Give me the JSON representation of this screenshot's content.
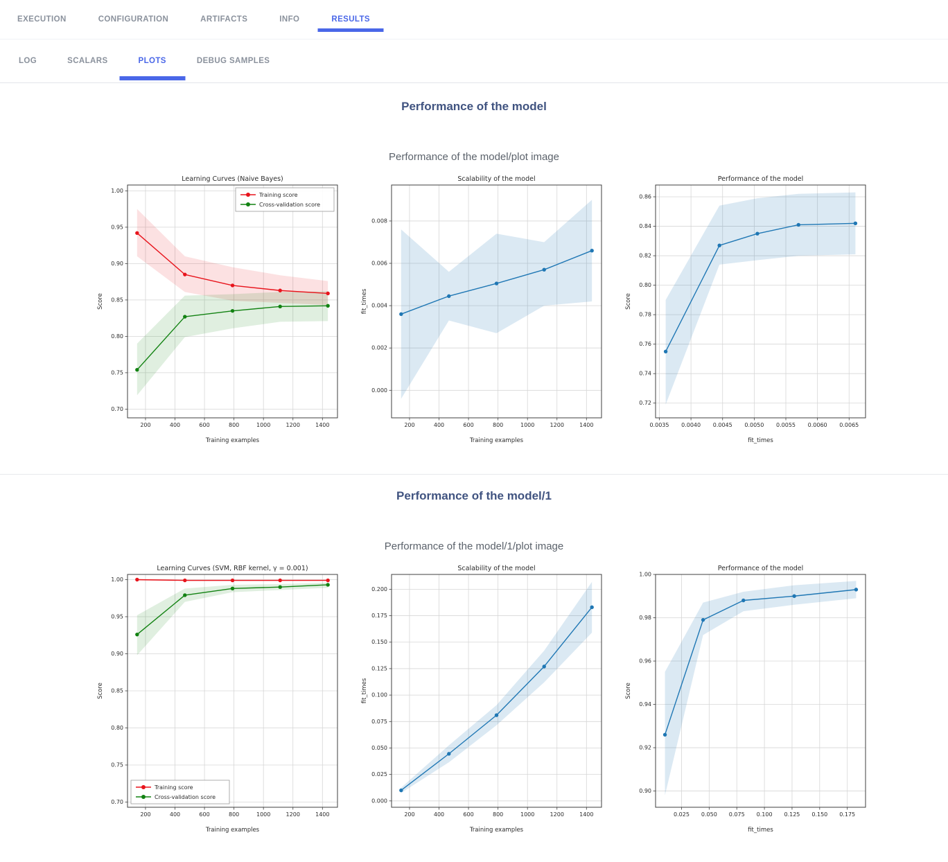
{
  "accent_color": "#4a67e8",
  "section_title_color": "#405380",
  "nav": {
    "tabs": [
      {
        "label": "EXECUTION",
        "active": false
      },
      {
        "label": "CONFIGURATION",
        "active": false
      },
      {
        "label": "ARTIFACTS",
        "active": false
      },
      {
        "label": "INFO",
        "active": false
      },
      {
        "label": "RESULTS",
        "active": true
      }
    ],
    "subtabs": [
      {
        "label": "LOG",
        "active": false
      },
      {
        "label": "SCALARS",
        "active": false
      },
      {
        "label": "PLOTS",
        "active": true
      },
      {
        "label": "DEBUG SAMPLES",
        "active": false
      }
    ]
  },
  "sections": [
    {
      "title": "Performance of the model",
      "subtitle": "Performance of the model/plot image"
    },
    {
      "title": "Performance of the model/1",
      "subtitle": "Performance of the model/1/plot image"
    }
  ],
  "chart_data": [
    {
      "type": "line",
      "title": "Learning Curves (Naive Bayes)",
      "xlabel": "Training examples",
      "ylabel": "Score",
      "xlim": [
        78,
        1502
      ],
      "ylim": [
        0.688,
        1.008
      ],
      "grid": true,
      "legend_position": "top-right",
      "xticks": {
        "values": [
          200,
          400,
          600,
          800,
          1000,
          1200,
          1400
        ],
        "labels": [
          "200",
          "400",
          "600",
          "800",
          "1000",
          "1200",
          "1400"
        ]
      },
      "yticks": {
        "values": [
          0.7,
          0.75,
          0.8,
          0.85,
          0.9,
          0.95,
          1.0
        ],
        "labels": [
          "0.70",
          "0.75",
          "0.80",
          "0.85",
          "0.90",
          "0.95",
          "1.00"
        ]
      },
      "series": [
        {
          "name": "Training score",
          "color": "#e8141c",
          "band_opacity": 0.13,
          "x": [
            143,
            467,
            790,
            1113,
            1437
          ],
          "y": [
            0.942,
            0.885,
            0.87,
            0.863,
            0.859
          ],
          "band_lower": [
            0.91,
            0.861,
            0.849,
            0.846,
            0.843
          ],
          "band_upper": [
            0.975,
            0.91,
            0.895,
            0.884,
            0.876
          ]
        },
        {
          "name": "Cross-validation score",
          "color": "#128212",
          "band_opacity": 0.13,
          "x": [
            143,
            467,
            790,
            1113,
            1437
          ],
          "y": [
            0.754,
            0.827,
            0.835,
            0.841,
            0.842
          ],
          "band_lower": [
            0.719,
            0.799,
            0.811,
            0.82,
            0.821
          ],
          "band_upper": [
            0.79,
            0.856,
            0.858,
            0.861,
            0.862
          ]
        }
      ]
    },
    {
      "type": "line",
      "title": "Scalability of the model",
      "xlabel": "Training examples",
      "ylabel": "fit_times",
      "xlim": [
        78,
        1502
      ],
      "ylim": [
        -0.0013,
        0.0097
      ],
      "grid": true,
      "xticks": {
        "values": [
          200,
          400,
          600,
          800,
          1000,
          1200,
          1400
        ],
        "labels": [
          "200",
          "400",
          "600",
          "800",
          "1000",
          "1200",
          "1400"
        ]
      },
      "yticks": {
        "values": [
          0.0,
          0.002,
          0.004,
          0.006,
          0.008
        ],
        "labels": [
          "0.000",
          "0.002",
          "0.004",
          "0.006",
          "0.008"
        ]
      },
      "series": [
        {
          "name": "fit_times",
          "color": "#1f77b4",
          "band_opacity": 0.16,
          "x": [
            143,
            467,
            790,
            1113,
            1437
          ],
          "y": [
            0.0036,
            0.00445,
            0.00505,
            0.0057,
            0.0066
          ],
          "band_lower": [
            -0.0004,
            0.0033,
            0.0027,
            0.004,
            0.0042
          ],
          "band_upper": [
            0.0076,
            0.0056,
            0.0074,
            0.007,
            0.009
          ]
        }
      ]
    },
    {
      "type": "line",
      "title": "Performance of the model",
      "xlabel": "fit_times",
      "ylabel": "Score",
      "xlim": [
        0.00344,
        0.00676
      ],
      "ylim": [
        0.71,
        0.868
      ],
      "grid": true,
      "xticks": {
        "values": [
          0.0035,
          0.004,
          0.0045,
          0.005,
          0.0055,
          0.006,
          0.0065
        ],
        "labels": [
          "0.0035",
          "0.0040",
          "0.0045",
          "0.0050",
          "0.0055",
          "0.0060",
          "0.0065"
        ]
      },
      "yticks": {
        "values": [
          0.72,
          0.74,
          0.76,
          0.78,
          0.8,
          0.82,
          0.84,
          0.86
        ],
        "labels": [
          "0.72",
          "0.74",
          "0.76",
          "0.78",
          "0.80",
          "0.82",
          "0.84",
          "0.86"
        ]
      },
      "series": [
        {
          "name": "Score",
          "color": "#1f77b4",
          "band_opacity": 0.16,
          "x": [
            0.0036,
            0.00445,
            0.00505,
            0.0057,
            0.0066
          ],
          "y": [
            0.755,
            0.827,
            0.835,
            0.841,
            0.842
          ],
          "band_lower": [
            0.719,
            0.814,
            0.817,
            0.82,
            0.821
          ],
          "band_upper": [
            0.79,
            0.854,
            0.859,
            0.862,
            0.863
          ]
        }
      ]
    },
    {
      "type": "line",
      "title": "Learning Curves (SVM, RBF kernel, γ = 0.001)",
      "xlabel": "Training examples",
      "ylabel": "Score",
      "xlim": [
        78,
        1502
      ],
      "ylim": [
        0.693,
        1.007
      ],
      "grid": true,
      "legend_position": "bottom-left",
      "xticks": {
        "values": [
          200,
          400,
          600,
          800,
          1000,
          1200,
          1400
        ],
        "labels": [
          "200",
          "400",
          "600",
          "800",
          "1000",
          "1200",
          "1400"
        ]
      },
      "yticks": {
        "values": [
          0.7,
          0.75,
          0.8,
          0.85,
          0.9,
          0.95,
          1.0
        ],
        "labels": [
          "0.70",
          "0.75",
          "0.80",
          "0.85",
          "0.90",
          "0.95",
          "1.00"
        ]
      },
      "series": [
        {
          "name": "Training score",
          "color": "#e8141c",
          "band_opacity": 0.13,
          "x": [
            143,
            467,
            790,
            1113,
            1437
          ],
          "y": [
            1.0,
            0.999,
            0.999,
            0.999,
            0.999
          ],
          "band_lower": [
            0.9985,
            0.998,
            0.998,
            0.998,
            0.9985
          ],
          "band_upper": [
            1.0005,
            1.0,
            1.0,
            1.0,
            1.0
          ]
        },
        {
          "name": "Cross-validation score",
          "color": "#128212",
          "band_opacity": 0.13,
          "x": [
            143,
            467,
            790,
            1113,
            1437
          ],
          "y": [
            0.926,
            0.979,
            0.988,
            0.99,
            0.993
          ],
          "band_lower": [
            0.898,
            0.97,
            0.983,
            0.986,
            0.989
          ],
          "band_upper": [
            0.952,
            0.988,
            0.993,
            0.994,
            0.996
          ]
        }
      ]
    },
    {
      "type": "line",
      "title": "Scalability of the model",
      "xlabel": "Training examples",
      "ylabel": "fit_times",
      "xlim": [
        78,
        1502
      ],
      "ylim": [
        -0.006,
        0.214
      ],
      "grid": true,
      "xticks": {
        "values": [
          200,
          400,
          600,
          800,
          1000,
          1200,
          1400
        ],
        "labels": [
          "200",
          "400",
          "600",
          "800",
          "1000",
          "1200",
          "1400"
        ]
      },
      "yticks": {
        "values": [
          0.0,
          0.025,
          0.05,
          0.075,
          0.1,
          0.125,
          0.15,
          0.175,
          0.2
        ],
        "labels": [
          "0.000",
          "0.025",
          "0.050",
          "0.075",
          "0.100",
          "0.125",
          "0.150",
          "0.175",
          "0.200"
        ]
      },
      "series": [
        {
          "name": "fit_times",
          "color": "#1f77b4",
          "band_opacity": 0.16,
          "x": [
            143,
            467,
            790,
            1113,
            1437
          ],
          "y": [
            0.01,
            0.0445,
            0.081,
            0.127,
            0.183
          ],
          "band_lower": [
            0.0075,
            0.0365,
            0.0715,
            0.112,
            0.159
          ],
          "band_upper": [
            0.0125,
            0.0525,
            0.0905,
            0.142,
            0.207
          ]
        }
      ]
    },
    {
      "type": "line",
      "title": "Performance of the model",
      "xlabel": "fit_times",
      "ylabel": "Score",
      "xlim": [
        0.0015,
        0.1915
      ],
      "ylim": [
        0.8925,
        1.0
      ],
      "grid": true,
      "xticks": {
        "values": [
          0.025,
          0.05,
          0.075,
          0.1,
          0.125,
          0.15,
          0.175
        ],
        "labels": [
          "0.025",
          "0.050",
          "0.075",
          "0.100",
          "0.125",
          "0.150",
          "0.175"
        ]
      },
      "yticks": {
        "values": [
          0.9,
          0.92,
          0.94,
          0.96,
          0.98,
          1.0
        ],
        "labels": [
          "0.90",
          "0.92",
          "0.94",
          "0.96",
          "0.98",
          "1.00"
        ]
      },
      "series": [
        {
          "name": "Score",
          "color": "#1f77b4",
          "band_opacity": 0.16,
          "x": [
            0.01,
            0.0445,
            0.081,
            0.127,
            0.183
          ],
          "y": [
            0.926,
            0.979,
            0.988,
            0.99,
            0.993
          ],
          "band_lower": [
            0.898,
            0.972,
            0.983,
            0.986,
            0.989
          ],
          "band_upper": [
            0.955,
            0.987,
            0.992,
            0.995,
            0.997
          ]
        }
      ]
    }
  ]
}
